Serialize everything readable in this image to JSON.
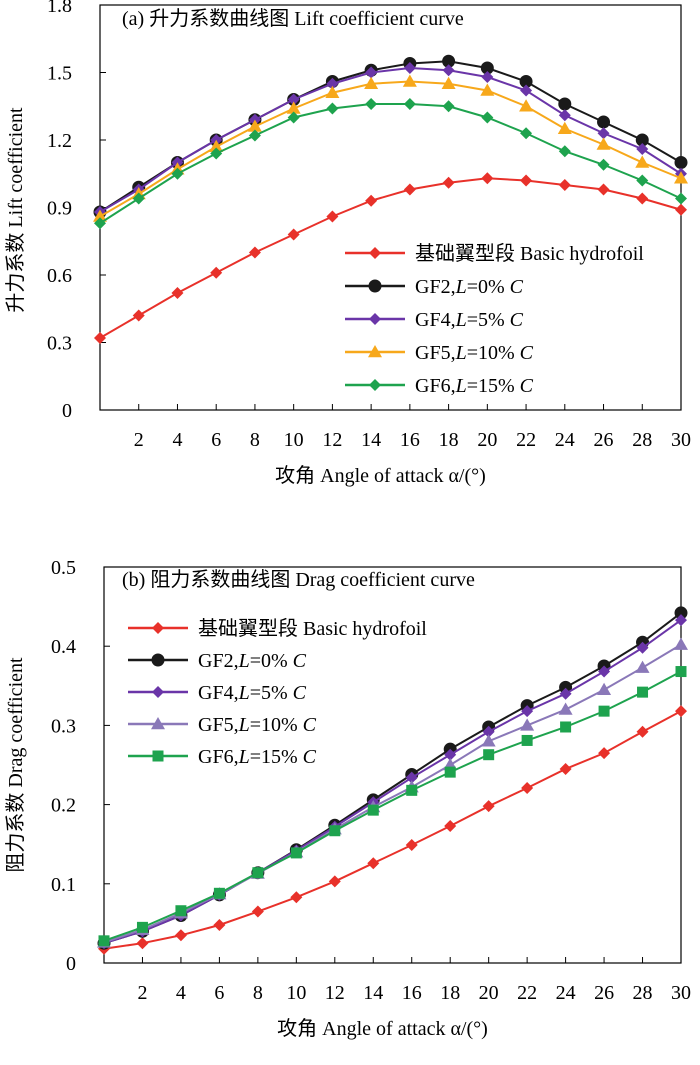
{
  "chart_data": [
    {
      "type": "line",
      "title": "(a) 升力系数曲线图 Lift coefficient curve",
      "xlabel": "攻角 Angle of attack α/(°)",
      "ylabel": "升力系数 Lift coefficient",
      "xlim": [
        0,
        30
      ],
      "ylim": [
        0,
        1.8
      ],
      "x_ticks": [
        "2",
        "4",
        "6",
        "8",
        "10",
        "12",
        "14",
        "16",
        "18",
        "20",
        "22",
        "24",
        "26",
        "28",
        "30"
      ],
      "y_ticks": [
        "0",
        "0.3",
        "0.6",
        "0.9",
        "1.2",
        "1.5",
        "1.8"
      ],
      "grid": false,
      "legend_position": "center-right",
      "x": [
        0,
        2,
        4,
        6,
        8,
        10,
        12,
        14,
        16,
        18,
        20,
        22,
        24,
        26,
        28,
        30
      ],
      "series": [
        {
          "name": "基础翼型段 Basic hydrofoil",
          "color": "#e8312a",
          "marker": "diamond",
          "values": [
            0.32,
            0.42,
            0.52,
            0.61,
            0.7,
            0.78,
            0.86,
            0.93,
            0.98,
            1.01,
            1.03,
            1.02,
            1.0,
            0.98,
            0.94,
            0.89
          ]
        },
        {
          "name": "GF2,L=0% C",
          "color": "#1a1a1a",
          "marker": "circle",
          "values": [
            0.88,
            0.99,
            1.1,
            1.2,
            1.29,
            1.38,
            1.46,
            1.51,
            1.54,
            1.55,
            1.52,
            1.46,
            1.36,
            1.28,
            1.2,
            1.1
          ]
        },
        {
          "name": "GF4,L=5% C",
          "color": "#6a35a8",
          "marker": "diamond",
          "values": [
            0.88,
            0.98,
            1.1,
            1.2,
            1.29,
            1.38,
            1.45,
            1.5,
            1.52,
            1.51,
            1.48,
            1.42,
            1.31,
            1.23,
            1.16,
            1.05
          ]
        },
        {
          "name": "GF5,L=10% C",
          "color": "#f7a81b",
          "marker": "triangle",
          "values": [
            0.86,
            0.96,
            1.07,
            1.17,
            1.26,
            1.34,
            1.41,
            1.45,
            1.46,
            1.45,
            1.42,
            1.35,
            1.25,
            1.18,
            1.1,
            1.03
          ]
        },
        {
          "name": "GF6,L=15% C",
          "color": "#1ea34e",
          "marker": "diamond",
          "values": [
            0.83,
            0.94,
            1.05,
            1.14,
            1.22,
            1.3,
            1.34,
            1.36,
            1.36,
            1.35,
            1.3,
            1.23,
            1.15,
            1.09,
            1.02,
            0.94
          ]
        }
      ]
    },
    {
      "type": "line",
      "title": "(b) 阻力系数曲线图 Drag coefficient curve",
      "xlabel": "攻角 Angle of attack α/(°)",
      "ylabel": "阻力系数 Drag coefficient",
      "xlim": [
        0,
        30
      ],
      "ylim": [
        0,
        0.5
      ],
      "x_ticks": [
        "2",
        "4",
        "6",
        "8",
        "10",
        "12",
        "14",
        "16",
        "18",
        "20",
        "22",
        "24",
        "26",
        "28",
        "30"
      ],
      "y_ticks": [
        "0",
        "0.1",
        "0.2",
        "0.3",
        "0.4",
        "0.5"
      ],
      "grid": false,
      "legend_position": "top-left",
      "x": [
        0,
        2,
        4,
        6,
        8,
        10,
        12,
        14,
        16,
        18,
        20,
        22,
        24,
        26,
        28,
        30
      ],
      "series": [
        {
          "name": "基础翼型段 Basic hydrofoil",
          "color": "#e8312a",
          "marker": "diamond",
          "values": [
            0.018,
            0.025,
            0.035,
            0.048,
            0.065,
            0.083,
            0.103,
            0.126,
            0.149,
            0.173,
            0.198,
            0.221,
            0.245,
            0.265,
            0.292,
            0.318
          ]
        },
        {
          "name": "GF2,L=0% C",
          "color": "#1a1a1a",
          "marker": "circle",
          "values": [
            0.025,
            0.04,
            0.06,
            0.086,
            0.114,
            0.143,
            0.174,
            0.206,
            0.238,
            0.27,
            0.298,
            0.325,
            0.348,
            0.375,
            0.405,
            0.442
          ]
        },
        {
          "name": "GF4,L=5% C",
          "color": "#6a35a8",
          "marker": "diamond",
          "values": [
            0.025,
            0.04,
            0.06,
            0.086,
            0.114,
            0.142,
            0.172,
            0.203,
            0.234,
            0.263,
            0.292,
            0.318,
            0.34,
            0.368,
            0.398,
            0.433
          ]
        },
        {
          "name": "GF5,L=10% C",
          "color": "#8a78b8",
          "marker": "triangle",
          "values": [
            0.026,
            0.042,
            0.063,
            0.087,
            0.113,
            0.14,
            0.169,
            0.197,
            0.222,
            0.25,
            0.28,
            0.3,
            0.32,
            0.345,
            0.373,
            0.402
          ]
        },
        {
          "name": "GF6,L=15% C",
          "color": "#1ea34e",
          "marker": "square",
          "values": [
            0.028,
            0.045,
            0.066,
            0.088,
            0.114,
            0.139,
            0.167,
            0.193,
            0.218,
            0.241,
            0.263,
            0.281,
            0.298,
            0.318,
            0.342,
            0.368
          ]
        }
      ]
    }
  ]
}
